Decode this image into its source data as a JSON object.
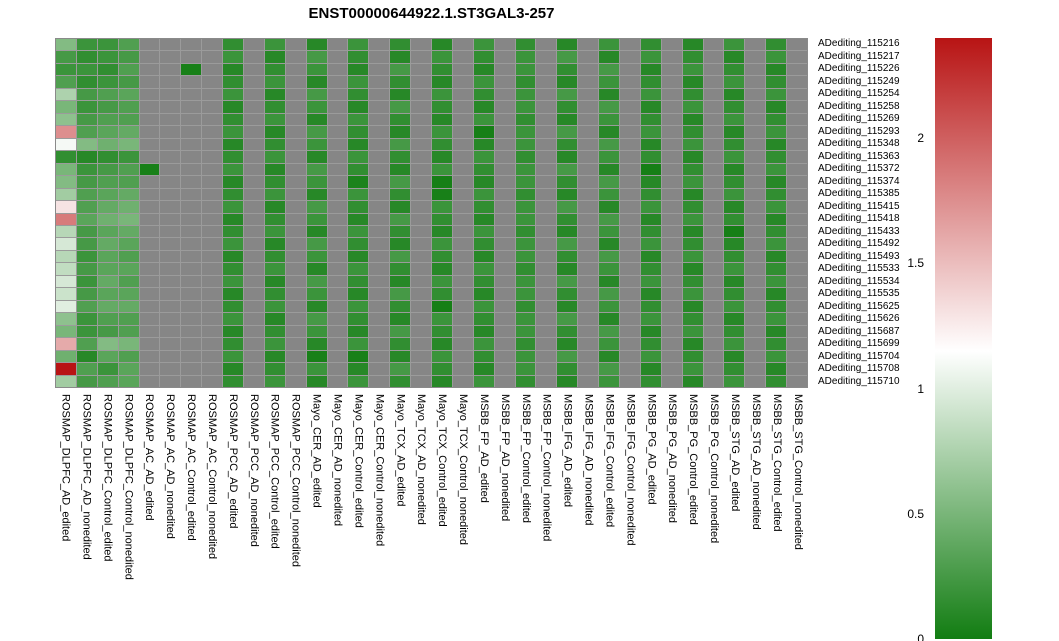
{
  "title": "ENST00000644922.1.ST3GAL3-257",
  "chart_data": {
    "type": "heatmap",
    "title": "ENST00000644922.1.ST3GAL3-257",
    "legend_position": "right",
    "colorscale": {
      "min": 0,
      "white_point": 1.15,
      "max": 2.4,
      "low_color": "#127d12",
      "mid_color": "#ffffff",
      "high_color": "#b81414",
      "na_color": "#868686",
      "grid_color": "#9b9b9b"
    },
    "colorbar_ticks": [
      2,
      1.5,
      1,
      0.5,
      0
    ],
    "rows": [
      "ADediting_115216",
      "ADediting_115217",
      "ADediting_115226",
      "ADediting_115249",
      "ADediting_115254",
      "ADediting_115258",
      "ADediting_115269",
      "ADediting_115293",
      "ADediting_115348",
      "ADediting_115363",
      "ADediting_115372",
      "ADediting_115374",
      "ADediting_115385",
      "ADediting_115415",
      "ADediting_115418",
      "ADediting_115433",
      "ADediting_115492",
      "ADediting_115493",
      "ADediting_115533",
      "ADediting_115534",
      "ADediting_115535",
      "ADediting_115625",
      "ADediting_115626",
      "ADediting_115687",
      "ADediting_115699",
      "ADediting_115704",
      "ADediting_115708",
      "ADediting_115710"
    ],
    "columns": [
      "ROSMAP_DLPFC_AD_edited",
      "ROSMAP_DLPFC_AD_nonedited",
      "ROSMAP_DLPFC_Control_edited",
      "ROSMAP_DLPFC_Control_nonedited",
      "ROSMAP_AC_AD_edited",
      "ROSMAP_AC_AD_nonedited",
      "ROSMAP_AC_Control_edited",
      "ROSMAP_AC_Control_nonedited",
      "ROSMAP_PCC_AD_edited",
      "ROSMAP_PCC_AD_nonedited",
      "ROSMAP_PCC_Control_edited",
      "ROSMAP_PCC_Control_nonedited",
      "Mayo_CER_AD_edited",
      "Mayo_CER_AD_nonedited",
      "Mayo_CER_Control_edited",
      "Mayo_CER_Control_nonedited",
      "Mayo_TCX_AD_edited",
      "Mayo_TCX_AD_nonedited",
      "Mayo_TCX_Control_edited",
      "Mayo_TCX_Control_nonedited",
      "MSBB_FP_AD_edited",
      "MSBB_FP_AD_nonedited",
      "MSBB_FP_Control_edited",
      "MSBB_FP_Control_nonedited",
      "MSBB_IFG_AD_edited",
      "MSBB_IFG_AD_nonedited",
      "MSBB_IFG_Control_edited",
      "MSBB_IFG_Control_nonedited",
      "MSBB_PG_AD_edited",
      "MSBB_PG_AD_nonedited",
      "MSBB_PG_Control_edited",
      "MSBB_PG_Control_nonedited",
      "MSBB_STG_AD_edited",
      "MSBB_STG_AD_nonedited",
      "MSBB_STG_Control_edited",
      "MSBB_STG_Control_nonedited"
    ],
    "values": [
      [
        0.55,
        0.2,
        0.2,
        0.3,
        null,
        null,
        null,
        null,
        0.15,
        null,
        0.2,
        null,
        0.1,
        null,
        0.2,
        null,
        0.15,
        null,
        0.1,
        null,
        0.2,
        null,
        0.15,
        null,
        0.1,
        null,
        0.2,
        null,
        0.15,
        null,
        0.1,
        null,
        0.2,
        null,
        0.15,
        null
      ],
      [
        0.25,
        0.15,
        0.2,
        0.25,
        null,
        null,
        null,
        null,
        0.2,
        null,
        0.1,
        null,
        0.25,
        null,
        0.15,
        null,
        0.1,
        null,
        0.2,
        null,
        0.15,
        null,
        0.2,
        null,
        0.25,
        null,
        0.1,
        null,
        0.2,
        null,
        0.15,
        null,
        0.1,
        null,
        0.2,
        null
      ],
      [
        0.2,
        0.2,
        0.15,
        0.3,
        null,
        null,
        0.03,
        null,
        0.1,
        null,
        0.15,
        null,
        0.2,
        null,
        0.1,
        null,
        0.25,
        null,
        0.15,
        null,
        0.1,
        null,
        0.2,
        null,
        0.15,
        null,
        0.25,
        null,
        0.1,
        null,
        0.2,
        null,
        0.15,
        null,
        0.1,
        null
      ],
      [
        0.3,
        0.15,
        0.2,
        0.25,
        null,
        null,
        null,
        null,
        0.15,
        null,
        0.2,
        null,
        0.1,
        null,
        0.2,
        null,
        0.15,
        null,
        0.1,
        null,
        0.2,
        null,
        0.15,
        null,
        0.1,
        null,
        0.2,
        null,
        0.15,
        null,
        0.1,
        null,
        0.2,
        null,
        0.15,
        null
      ],
      [
        0.75,
        0.25,
        0.3,
        0.35,
        null,
        null,
        null,
        null,
        0.2,
        null,
        0.1,
        null,
        0.25,
        null,
        0.15,
        null,
        0.1,
        null,
        0.2,
        null,
        0.15,
        null,
        0.2,
        null,
        0.25,
        null,
        0.1,
        null,
        0.2,
        null,
        0.15,
        null,
        0.1,
        null,
        0.2,
        null
      ],
      [
        0.5,
        0.2,
        0.25,
        0.3,
        null,
        null,
        null,
        null,
        0.1,
        null,
        0.15,
        null,
        0.2,
        null,
        0.1,
        null,
        0.25,
        null,
        0.15,
        null,
        0.1,
        null,
        0.2,
        null,
        0.15,
        null,
        0.25,
        null,
        0.1,
        null,
        0.2,
        null,
        0.15,
        null,
        0.1,
        null
      ],
      [
        0.6,
        0.25,
        0.3,
        0.3,
        null,
        null,
        null,
        null,
        0.15,
        null,
        0.2,
        null,
        0.1,
        null,
        0.2,
        null,
        0.15,
        null,
        0.1,
        null,
        0.2,
        null,
        0.15,
        null,
        0.1,
        null,
        0.2,
        null,
        0.15,
        null,
        0.1,
        null,
        0.2,
        null,
        0.15,
        null
      ],
      [
        1.75,
        0.3,
        0.35,
        0.4,
        null,
        null,
        null,
        null,
        0.2,
        null,
        0.1,
        null,
        0.25,
        null,
        0.15,
        null,
        0.1,
        null,
        0.2,
        null,
        0.02,
        null,
        0.2,
        null,
        0.25,
        null,
        0.1,
        null,
        0.2,
        null,
        0.15,
        null,
        0.1,
        null,
        0.2,
        null
      ],
      [
        1.1,
        0.55,
        0.45,
        0.5,
        null,
        null,
        null,
        null,
        0.1,
        null,
        0.15,
        null,
        0.2,
        null,
        0.1,
        null,
        0.25,
        null,
        0.15,
        null,
        0.1,
        null,
        0.2,
        null,
        0.15,
        null,
        0.25,
        null,
        0.1,
        null,
        0.2,
        null,
        0.15,
        null,
        0.1,
        null
      ],
      [
        0.15,
        0.1,
        0.15,
        0.2,
        null,
        null,
        null,
        null,
        0.15,
        null,
        0.2,
        null,
        0.1,
        null,
        0.2,
        null,
        0.15,
        null,
        0.1,
        null,
        0.2,
        null,
        0.15,
        null,
        0.1,
        null,
        0.2,
        null,
        0.15,
        null,
        0.1,
        null,
        0.2,
        null,
        0.15,
        null
      ],
      [
        0.5,
        0.2,
        0.25,
        0.3,
        0.03,
        null,
        null,
        null,
        0.2,
        null,
        0.1,
        null,
        0.25,
        null,
        0.15,
        null,
        0.1,
        null,
        0.2,
        null,
        0.15,
        null,
        0.2,
        null,
        0.25,
        null,
        0.1,
        null,
        0.02,
        null,
        0.15,
        null,
        0.1,
        null,
        0.2,
        null
      ],
      [
        0.55,
        0.25,
        0.3,
        0.3,
        null,
        null,
        null,
        null,
        0.1,
        null,
        0.15,
        null,
        0.2,
        null,
        0.05,
        null,
        0.25,
        null,
        0.02,
        null,
        0.1,
        null,
        0.2,
        null,
        0.15,
        null,
        0.25,
        null,
        0.1,
        null,
        0.2,
        null,
        0.15,
        null,
        0.1,
        null
      ],
      [
        0.7,
        0.3,
        0.35,
        0.4,
        null,
        null,
        null,
        null,
        0.15,
        null,
        0.2,
        null,
        0.1,
        null,
        0.2,
        null,
        0.15,
        null,
        0.03,
        null,
        0.2,
        null,
        0.15,
        null,
        0.1,
        null,
        0.2,
        null,
        0.15,
        null,
        0.1,
        null,
        0.2,
        null,
        0.15,
        null
      ],
      [
        1.3,
        0.3,
        0.4,
        0.45,
        null,
        null,
        null,
        null,
        0.2,
        null,
        0.1,
        null,
        0.25,
        null,
        0.15,
        null,
        0.1,
        null,
        0.2,
        null,
        0.15,
        null,
        0.2,
        null,
        0.25,
        null,
        0.1,
        null,
        0.2,
        null,
        0.15,
        null,
        0.1,
        null,
        0.2,
        null
      ],
      [
        1.85,
        0.35,
        0.45,
        0.5,
        null,
        null,
        null,
        null,
        0.1,
        null,
        0.15,
        null,
        0.2,
        null,
        0.1,
        null,
        0.25,
        null,
        0.15,
        null,
        0.1,
        null,
        0.2,
        null,
        0.15,
        null,
        0.25,
        null,
        0.1,
        null,
        0.2,
        null,
        0.15,
        null,
        0.1,
        null
      ],
      [
        0.8,
        0.25,
        0.35,
        0.4,
        null,
        null,
        null,
        null,
        0.15,
        null,
        0.2,
        null,
        0.1,
        null,
        0.2,
        null,
        0.15,
        null,
        0.1,
        null,
        0.2,
        null,
        0.15,
        null,
        0.1,
        null,
        0.2,
        null,
        0.15,
        null,
        0.1,
        null,
        0.02,
        null,
        0.15,
        null
      ],
      [
        0.95,
        0.25,
        0.4,
        0.35,
        null,
        null,
        null,
        null,
        0.2,
        null,
        0.1,
        null,
        0.25,
        null,
        0.15,
        null,
        0.1,
        null,
        0.2,
        null,
        0.15,
        null,
        0.2,
        null,
        0.25,
        null,
        0.1,
        null,
        0.2,
        null,
        0.15,
        null,
        0.1,
        null,
        0.2,
        null
      ],
      [
        0.8,
        0.2,
        0.35,
        0.3,
        null,
        null,
        null,
        null,
        0.1,
        null,
        0.15,
        null,
        0.2,
        null,
        0.1,
        null,
        0.25,
        null,
        0.15,
        null,
        0.1,
        null,
        0.2,
        null,
        0.15,
        null,
        0.25,
        null,
        0.1,
        null,
        0.2,
        null,
        0.15,
        null,
        0.1,
        null
      ],
      [
        0.85,
        0.25,
        0.35,
        0.35,
        null,
        null,
        null,
        null,
        0.15,
        null,
        0.2,
        null,
        0.1,
        null,
        0.2,
        null,
        0.15,
        null,
        0.1,
        null,
        0.2,
        null,
        0.15,
        null,
        0.1,
        null,
        0.2,
        null,
        0.15,
        null,
        0.1,
        null,
        0.2,
        null,
        0.15,
        null
      ],
      [
        0.95,
        0.2,
        0.4,
        0.3,
        null,
        null,
        null,
        null,
        0.2,
        null,
        0.1,
        null,
        0.25,
        null,
        0.15,
        null,
        0.1,
        null,
        0.2,
        null,
        0.15,
        null,
        0.2,
        null,
        0.25,
        null,
        0.1,
        null,
        0.2,
        null,
        0.15,
        null,
        0.1,
        null,
        0.2,
        null
      ],
      [
        0.9,
        0.25,
        0.35,
        0.35,
        null,
        null,
        null,
        null,
        0.1,
        null,
        0.15,
        null,
        0.2,
        null,
        0.1,
        null,
        0.25,
        null,
        0.15,
        null,
        0.1,
        null,
        0.2,
        null,
        0.15,
        null,
        0.25,
        null,
        0.1,
        null,
        0.2,
        null,
        0.15,
        null,
        0.1,
        null
      ],
      [
        1.0,
        0.3,
        0.4,
        0.4,
        null,
        null,
        null,
        null,
        0.15,
        null,
        0.2,
        null,
        0.1,
        null,
        0.2,
        null,
        0.15,
        null,
        0.02,
        null,
        0.2,
        null,
        0.15,
        null,
        0.1,
        null,
        0.2,
        null,
        0.15,
        null,
        0.1,
        null,
        0.2,
        null,
        0.15,
        null
      ],
      [
        0.6,
        0.2,
        0.3,
        0.3,
        null,
        null,
        null,
        null,
        0.2,
        null,
        0.1,
        null,
        0.25,
        null,
        0.15,
        null,
        0.1,
        null,
        0.2,
        null,
        0.15,
        null,
        0.2,
        null,
        0.25,
        null,
        0.1,
        null,
        0.2,
        null,
        0.15,
        null,
        0.1,
        null,
        0.2,
        null
      ],
      [
        0.5,
        0.2,
        0.25,
        0.3,
        null,
        null,
        null,
        null,
        0.1,
        null,
        0.15,
        null,
        0.2,
        null,
        0.1,
        null,
        0.25,
        null,
        0.15,
        null,
        0.1,
        null,
        0.2,
        null,
        0.15,
        null,
        0.25,
        null,
        0.1,
        null,
        0.2,
        null,
        0.15,
        null,
        0.1,
        null
      ],
      [
        1.6,
        0.3,
        0.55,
        0.5,
        null,
        null,
        null,
        null,
        0.15,
        null,
        0.2,
        null,
        0.1,
        null,
        0.2,
        null,
        0.15,
        null,
        0.1,
        null,
        0.2,
        null,
        0.15,
        null,
        0.1,
        null,
        0.2,
        null,
        0.15,
        null,
        0.1,
        null,
        0.2,
        null,
        0.15,
        null
      ],
      [
        0.45,
        0.1,
        0.35,
        0.3,
        null,
        null,
        null,
        null,
        0.2,
        null,
        0.1,
        null,
        0.03,
        null,
        0.03,
        null,
        0.1,
        null,
        0.2,
        null,
        0.15,
        null,
        0.2,
        null,
        0.25,
        null,
        0.1,
        null,
        0.2,
        null,
        0.15,
        null,
        0.1,
        null,
        0.2,
        null
      ],
      [
        2.4,
        0.3,
        0.2,
        0.35,
        null,
        null,
        null,
        null,
        0.1,
        null,
        0.15,
        null,
        0.2,
        null,
        0.1,
        null,
        0.25,
        null,
        0.15,
        null,
        0.1,
        null,
        0.2,
        null,
        0.15,
        null,
        0.25,
        null,
        0.1,
        null,
        0.2,
        null,
        0.15,
        null,
        0.1,
        null
      ],
      [
        0.7,
        0.25,
        0.3,
        0.35,
        null,
        null,
        null,
        null,
        0.15,
        null,
        0.2,
        null,
        0.1,
        null,
        0.2,
        null,
        0.15,
        null,
        0.1,
        null,
        0.2,
        null,
        0.15,
        null,
        0.1,
        null,
        0.2,
        null,
        0.15,
        null,
        0.1,
        null,
        0.2,
        null,
        0.15,
        null
      ]
    ]
  }
}
